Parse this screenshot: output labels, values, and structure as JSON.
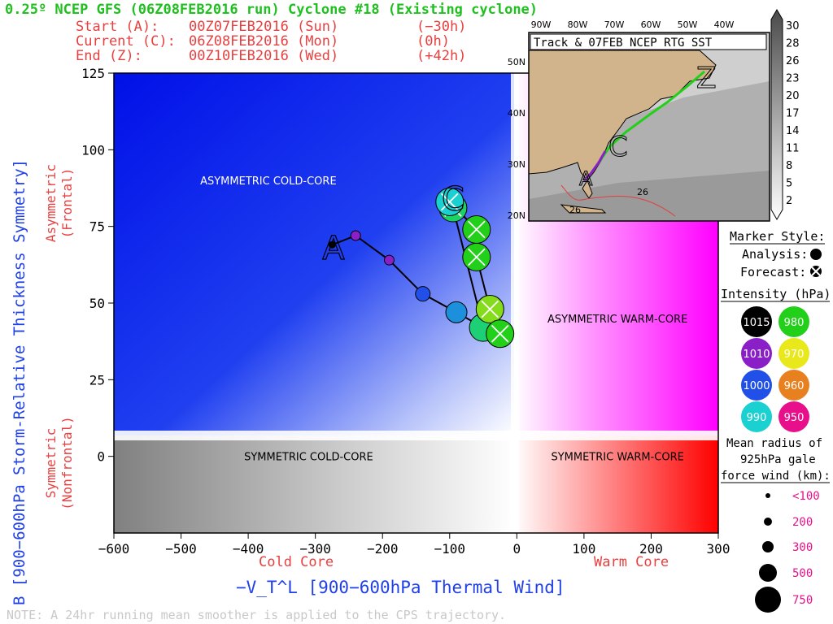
{
  "header": {
    "title": "0.25º NCEP GFS (06Z08FEB2016 run) Cyclone #18 (Existing cyclone)",
    "rows": [
      {
        "label": "Start (A):",
        "time": "00Z07FEB2016 (Sun)",
        "offset": "(−30h)"
      },
      {
        "label": "Current (C):",
        "time": "06Z08FEB2016 (Mon)",
        "offset": "(0h)"
      },
      {
        "label": "End (Z):",
        "time": "00Z10FEB2016 (Wed)",
        "offset": "(+42h)"
      }
    ]
  },
  "chart_data": {
    "type": "scatter",
    "xlabel": "−V_T^L [900−600hPa Thermal Wind]",
    "ylabel": "B [900−600hPa Storm-Relative Thickness Symmetry]",
    "xlim": [
      -600,
      300
    ],
    "ylim": [
      -25,
      125
    ],
    "x_ticks": [
      "−600",
      "−500",
      "−400",
      "−300",
      "−200",
      "−100",
      "0",
      "100",
      "200",
      "300"
    ],
    "y_ticks": [
      "0",
      "25",
      "50",
      "75",
      "100",
      "125"
    ],
    "x_side_labels": {
      "left": "Cold Core",
      "right": "Warm Core"
    },
    "y_side_labels": {
      "top": [
        "Asymmetric",
        "(Frontal)"
      ],
      "bottom": [
        "Symmetric",
        "(Nonfrontal)"
      ]
    },
    "regions": [
      {
        "label": "ASYMMETRIC COLD-CORE",
        "x": -370,
        "y": 90
      },
      {
        "label": "ASYMMETRIC WARM-CORE",
        "x": 150,
        "y": 45
      },
      {
        "label": "SYMMETRIC COLD-CORE",
        "x": -310,
        "y": 0
      },
      {
        "label": "SYMMETRIC WARM-CORE",
        "x": 150,
        "y": 0
      }
    ],
    "letters": [
      {
        "label": "A",
        "x": -273,
        "y": 68
      },
      {
        "label": "C",
        "x": -95,
        "y": 84
      }
    ],
    "trajectory": [
      {
        "x": -275,
        "y": 69,
        "type": "analysis",
        "pressure": 1015,
        "radius": 100
      },
      {
        "x": -240,
        "y": 72,
        "type": "analysis",
        "pressure": 1010,
        "radius": 150
      },
      {
        "x": -190,
        "y": 64,
        "type": "analysis",
        "pressure": 1010,
        "radius": 200
      },
      {
        "x": -140,
        "y": 53,
        "type": "analysis",
        "pressure": 1000,
        "radius": 300
      },
      {
        "x": -90,
        "y": 47,
        "type": "analysis",
        "pressure": 995,
        "radius": 400
      },
      {
        "x": -50,
        "y": 42,
        "type": "analysis",
        "pressure": 985,
        "radius": 500
      },
      {
        "x": -95,
        "y": 81,
        "type": "forecast",
        "pressure": 984,
        "radius": 500
      },
      {
        "x": -100,
        "y": 83,
        "type": "forecast",
        "pressure": 990,
        "radius": 500
      },
      {
        "x": -60,
        "y": 74,
        "type": "forecast",
        "pressure": 980,
        "radius": 500
      },
      {
        "x": -60,
        "y": 65,
        "type": "forecast",
        "pressure": 980,
        "radius": 500
      },
      {
        "x": -40,
        "y": 48,
        "type": "forecast",
        "pressure": 975,
        "radius": 500
      },
      {
        "x": -25,
        "y": 40,
        "type": "forecast",
        "pressure": 980,
        "radius": 500
      }
    ],
    "note": "NOTE:  A 24hr running mean smoother is applied to the CPS trajectory."
  },
  "inset": {
    "title": "Track & 07FEB NCEP RTG SST",
    "lon_ticks": [
      "90W",
      "80W",
      "70W",
      "60W",
      "50W",
      "40W"
    ],
    "lat_ticks": [
      "50N",
      "40N",
      "30N",
      "20N"
    ],
    "sst_labels": [
      "26",
      "26"
    ],
    "colorbar": [
      "30",
      "28",
      "26",
      "23",
      "20",
      "17",
      "14",
      "11",
      "8",
      "5",
      "2"
    ],
    "colors": {
      "land": "#d2b48c",
      "ocean": "#cfcfcf"
    }
  },
  "legend": {
    "marker_title": "Marker Style:",
    "analysis": "Analysis:",
    "forecast": "Forecast:",
    "intensity_title": "Intensity (hPa):",
    "intensity": [
      {
        "label": "1015",
        "color": "#000000"
      },
      {
        "label": "980",
        "color": "#22d01a"
      },
      {
        "label": "1010",
        "color": "#8a1fc8"
      },
      {
        "label": "970",
        "color": "#e8e81a"
      },
      {
        "label": "1000",
        "color": "#2050e8"
      },
      {
        "label": "960",
        "color": "#e88020"
      },
      {
        "label": "990",
        "color": "#1ad0d0"
      },
      {
        "label": "950",
        "color": "#e8108a"
      }
    ],
    "radius_title": [
      "Mean radius of",
      "925hPa gale",
      "force wind (km):"
    ],
    "radius": [
      "<100",
      "200",
      "300",
      "500",
      "750"
    ]
  }
}
